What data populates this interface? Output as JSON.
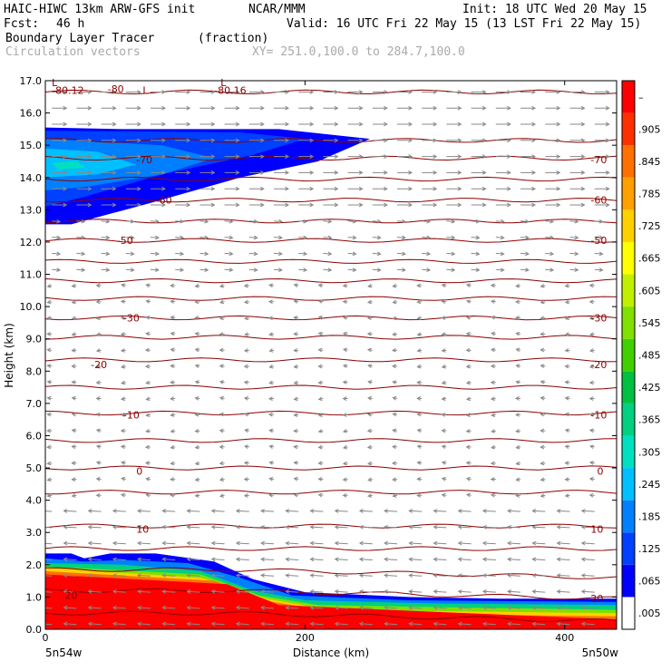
{
  "header": {
    "model": "HAIC-HIWC 13km ARW-GFS init",
    "org": "NCAR/MMM",
    "init": "Init: 18 UTC Wed 20 May 15",
    "fcst_label": "Fcst:",
    "fcst_value": "46 h",
    "valid": "Valid: 16 UTC Fri 22 May 15 (13 LST Fri 22 May 15)",
    "field_name": "Boundary Layer Tracer",
    "field_units": "(fraction)",
    "vectors_label": "Circulation vectors",
    "xy_label": "XY= 251.0,100.0 to 284.7,100.0"
  },
  "chart_data": {
    "type": "heatmap",
    "xlabel": "Distance (km)",
    "ylabel": "Height (km)",
    "xlim": [
      0,
      440
    ],
    "ylim": [
      0,
      17
    ],
    "x_ticks": [
      0,
      200,
      400
    ],
    "y_ticks": [
      "0.0",
      "1.0",
      "2.0",
      "3.0",
      "4.0",
      "5.0",
      "6.0",
      "7.0",
      "8.0",
      "9.0",
      "10.0",
      "11.0",
      "12.0",
      "13.0",
      "14.0",
      "15.0",
      "16.0",
      "17.0"
    ],
    "x_endpoints": [
      "5n54w",
      "5n50w"
    ],
    "colorbar": {
      "labels": [
        ".005",
        ".065",
        ".125",
        ".185",
        ".245",
        ".305",
        ".365",
        ".425",
        ".485",
        ".545",
        ".605",
        ".665",
        ".725",
        ".785",
        ".845",
        ".905",
        "–"
      ],
      "colors": [
        "#ffffff",
        "#0000ff",
        "#0040ff",
        "#0080ff",
        "#00c0ff",
        "#00e0c0",
        "#00d080",
        "#00c040",
        "#40d000",
        "#80e000",
        "#c0f000",
        "#ffff00",
        "#ffd000",
        "#ffa000",
        "#ff7000",
        "#ff3000",
        "#ff0000"
      ]
    },
    "isotherm_labels": [
      {
        "x": 5,
        "y": 16.7,
        "text": "-80.12"
      },
      {
        "x": 48,
        "y": 16.75,
        "text": "-80"
      },
      {
        "x": 75,
        "y": 16.7,
        "text": "L"
      },
      {
        "x": 130,
        "y": 16.7,
        "text": "-80.16"
      },
      {
        "x": 135,
        "y": 16.95,
        "text": "L"
      },
      {
        "x": 5,
        "y": 16.95,
        "text": "L"
      },
      {
        "x": 70,
        "y": 14.55,
        "text": "-70"
      },
      {
        "x": 420,
        "y": 14.55,
        "text": "-70"
      },
      {
        "x": 85,
        "y": 13.3,
        "text": "-60"
      },
      {
        "x": 420,
        "y": 13.3,
        "text": "-60"
      },
      {
        "x": 55,
        "y": 12.05,
        "text": "-50"
      },
      {
        "x": 420,
        "y": 12.05,
        "text": "-50"
      },
      {
        "x": 60,
        "y": 9.65,
        "text": "-30"
      },
      {
        "x": 420,
        "y": 9.65,
        "text": "-30"
      },
      {
        "x": 35,
        "y": 8.2,
        "text": "-20"
      },
      {
        "x": 420,
        "y": 8.2,
        "text": "-20"
      },
      {
        "x": 60,
        "y": 6.65,
        "text": "-10"
      },
      {
        "x": 420,
        "y": 6.65,
        "text": "-10"
      },
      {
        "x": 70,
        "y": 4.9,
        "text": "0"
      },
      {
        "x": 425,
        "y": 4.9,
        "text": "0"
      },
      {
        "x": 70,
        "y": 3.1,
        "text": "10"
      },
      {
        "x": 420,
        "y": 3.1,
        "text": "10"
      },
      {
        "x": 15,
        "y": 1.05,
        "text": "20"
      },
      {
        "x": 420,
        "y": 0.95,
        "text": "20"
      }
    ],
    "isotherm_heights": [
      16.65,
      15.15,
      14.6,
      13.95,
      13.3,
      12.65,
      12.05,
      11.4,
      10.8,
      10.25,
      9.65,
      9.05,
      8.35,
      7.5,
      6.7,
      5.85,
      5.0,
      4.25,
      3.2,
      2.5,
      1.85,
      1.2,
      0.5
    ],
    "tracer_regions": [
      {
        "level": 1,
        "points": [
          [
            0,
            15.55
          ],
          [
            60,
            15.5
          ],
          [
            180,
            15.5
          ],
          [
            250,
            15.2
          ],
          [
            210,
            14.5
          ],
          [
            150,
            14.0
          ],
          [
            80,
            13.2
          ],
          [
            20,
            12.55
          ],
          [
            0,
            12.55
          ]
        ]
      },
      {
        "level": 2,
        "points": [
          [
            0,
            15.45
          ],
          [
            150,
            15.4
          ],
          [
            200,
            15.2
          ],
          [
            160,
            14.7
          ],
          [
            90,
            14.1
          ],
          [
            30,
            13.4
          ],
          [
            0,
            13.1
          ]
        ]
      },
      {
        "level": 3,
        "points": [
          [
            0,
            15.2
          ],
          [
            90,
            15.0
          ],
          [
            130,
            14.6
          ],
          [
            90,
            14.1
          ],
          [
            30,
            13.7
          ],
          [
            0,
            13.6
          ]
        ]
      },
      {
        "level": 4,
        "points": [
          [
            0,
            14.9
          ],
          [
            40,
            14.8
          ],
          [
            70,
            14.4
          ],
          [
            40,
            14.1
          ],
          [
            0,
            14.0
          ]
        ]
      },
      {
        "level": 5,
        "points": [
          [
            5,
            14.45
          ],
          [
            25,
            14.5
          ],
          [
            30,
            14.3
          ],
          [
            10,
            14.25
          ]
        ]
      },
      {
        "level": 1,
        "points": [
          [
            0,
            0
          ],
          [
            0,
            2.35
          ],
          [
            20,
            2.35
          ],
          [
            30,
            2.2
          ],
          [
            50,
            2.35
          ],
          [
            85,
            2.35
          ],
          [
            130,
            2.1
          ],
          [
            160,
            1.55
          ],
          [
            200,
            1.15
          ],
          [
            280,
            1.0
          ],
          [
            350,
            0.95
          ],
          [
            440,
            0.95
          ],
          [
            440,
            0
          ]
        ]
      },
      {
        "level": 3,
        "points": [
          [
            0,
            0
          ],
          [
            0,
            2.2
          ],
          [
            30,
            2.1
          ],
          [
            60,
            2.15
          ],
          [
            110,
            2.05
          ],
          [
            150,
            1.6
          ],
          [
            190,
            1.05
          ],
          [
            280,
            0.9
          ],
          [
            440,
            0.85
          ],
          [
            440,
            0
          ]
        ]
      },
      {
        "level": 6,
        "points": [
          [
            0,
            0
          ],
          [
            0,
            2.05
          ],
          [
            60,
            2.0
          ],
          [
            120,
            1.8
          ],
          [
            160,
            1.2
          ],
          [
            200,
            0.9
          ],
          [
            300,
            0.8
          ],
          [
            440,
            0.75
          ],
          [
            440,
            0
          ]
        ]
      },
      {
        "level": 9,
        "points": [
          [
            0,
            0
          ],
          [
            0,
            1.95
          ],
          [
            120,
            1.7
          ],
          [
            165,
            1.05
          ],
          [
            210,
            0.75
          ],
          [
            440,
            0.6
          ],
          [
            440,
            0
          ]
        ]
      },
      {
        "level": 12,
        "points": [
          [
            0,
            0
          ],
          [
            0,
            1.9
          ],
          [
            120,
            1.6
          ],
          [
            170,
            0.95
          ],
          [
            220,
            0.6
          ],
          [
            440,
            0.5
          ],
          [
            440,
            0
          ]
        ]
      },
      {
        "level": 14,
        "points": [
          [
            0,
            0
          ],
          [
            0,
            1.8
          ],
          [
            130,
            1.5
          ],
          [
            175,
            0.85
          ],
          [
            230,
            0.5
          ],
          [
            440,
            0.4
          ],
          [
            440,
            0
          ]
        ]
      },
      {
        "level": 16,
        "points": [
          [
            0,
            0
          ],
          [
            0,
            1.7
          ],
          [
            140,
            1.4
          ],
          [
            180,
            0.75
          ],
          [
            440,
            0.3
          ],
          [
            440,
            0
          ]
        ]
      }
    ]
  }
}
